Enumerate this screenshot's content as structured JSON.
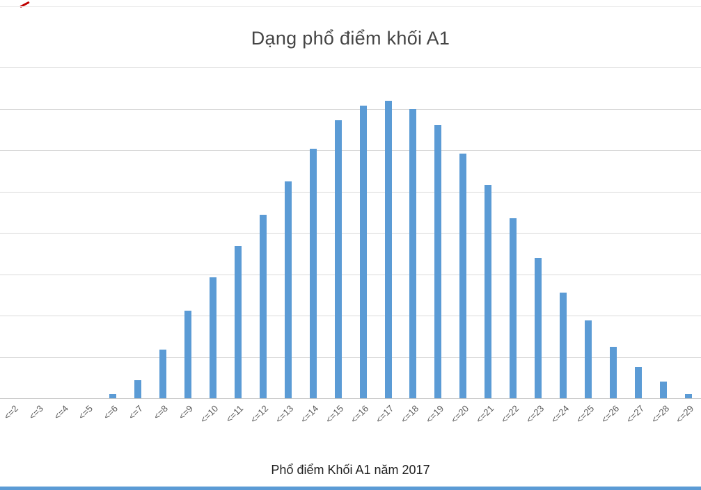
{
  "chart": {
    "title": "Dạng phổ điểm khối A1",
    "caption": "Phổ điểm Khối A1 năm 2017"
  },
  "chart_data": {
    "type": "bar",
    "title": "Dạng phổ điểm khối A1",
    "xlabel": "Phổ điểm Khối A1 năm 2017",
    "ylabel": "",
    "categories": [
      "<=2",
      "<=3",
      "<=4",
      "<=5",
      "<=6",
      "<=7",
      "<=8",
      "<=9",
      "<=10",
      "<=11",
      "<=12",
      "<=13",
      "<=14",
      "<=15",
      "<=16",
      "<=17",
      "<=18",
      "<=19",
      "<=20",
      "<=21",
      "<=22",
      "<=23",
      "<=24",
      "<=25",
      "<=26",
      "<=27",
      "<=28",
      "<=29"
    ],
    "values": [
      0,
      0,
      0,
      0,
      1.2,
      5.5,
      14.8,
      26.5,
      36.5,
      46,
      55.5,
      65.5,
      75.5,
      84,
      88.5,
      90,
      87.5,
      82.5,
      74,
      64.5,
      54.5,
      42.5,
      32,
      23.5,
      15.5,
      9.5,
      5,
      1.3
    ],
    "ylim": [
      0,
      100
    ],
    "y_tick_labels_visible": false,
    "gridlines": "horizontal",
    "n_gridline_intervals": 8,
    "x_label_rotation_deg": -45,
    "legend": "none",
    "bar_color": "#5b9bd5",
    "note": "y-axis has no visible tick labels in the screenshot; values are relative bar heights in percent of plot height"
  },
  "colors": {
    "bar": "#5b9bd5",
    "gridline": "#d9d9d9",
    "axis_baseline": "#c6c6c6",
    "title_text": "#454545",
    "axis_label_text": "#595959",
    "caption_text": "#1f1f1f",
    "bottom_strip": "#5b9bd5",
    "corner_mark": "#c00000"
  }
}
